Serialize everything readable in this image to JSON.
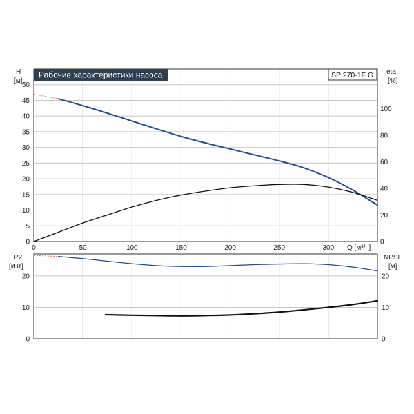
{
  "chart_data": {
    "type": "line",
    "title": "Рабочие характеристики насоса",
    "model": "SP 270-1F G",
    "x_axis": {
      "label": "Q [м³/ч]",
      "range": [
        0,
        350
      ],
      "ticks": [
        0,
        50,
        100,
        150,
        200,
        250,
        300
      ]
    },
    "grid": true,
    "top_panel": {
      "left_axis": {
        "label": "H",
        "unit": "[м]",
        "range": [
          0,
          55
        ],
        "ticks": [
          0,
          5,
          10,
          15,
          20,
          25,
          30,
          35,
          40,
          45,
          50
        ]
      },
      "right_axis": {
        "label": "eta",
        "unit": "[%]",
        "range": [
          0,
          130
        ],
        "ticks": [
          0,
          20,
          40,
          60,
          80,
          100
        ]
      },
      "series": [
        {
          "axis": "left",
          "color": "#1f4e8c",
          "extrapolated": {
            "x": [
              0,
              25
            ],
            "y": [
              47,
              45.5
            ]
          },
          "x": [
            25,
            50,
            75,
            100,
            125,
            150,
            175,
            200,
            225,
            250,
            275,
            300,
            325,
            350
          ],
          "y": [
            45.5,
            43.3,
            40.9,
            38.4,
            35.9,
            33.5,
            31.4,
            29.5,
            27.6,
            25.7,
            23.5,
            20.4,
            16.4,
            11.6
          ]
        },
        {
          "axis": "right",
          "color": "#111111",
          "x": [
            0,
            25,
            50,
            75,
            100,
            125,
            150,
            175,
            200,
            225,
            250,
            275,
            300,
            325,
            350
          ],
          "y": [
            0,
            7,
            14,
            20,
            26,
            31,
            35,
            38,
            40.5,
            42,
            43,
            43,
            41,
            37,
            31
          ]
        }
      ]
    },
    "bottom_panel": {
      "left_axis": {
        "label": "P2",
        "unit": "[кВт]",
        "range": [
          0,
          27
        ],
        "ticks": [
          0,
          10,
          20
        ]
      },
      "right_axis": {
        "label": "NPSH",
        "unit": "[м]",
        "range": [
          0,
          27
        ],
        "ticks": [
          0,
          10,
          20
        ]
      },
      "series": [
        {
          "axis": "left",
          "color": "#1f4e8c",
          "extrapolated": {
            "x": [
              0,
              25
            ],
            "y": [
              26.5,
              26.2
            ]
          },
          "x": [
            25,
            50,
            75,
            100,
            125,
            150,
            175,
            200,
            225,
            250,
            275,
            300,
            325,
            350
          ],
          "y": [
            26.2,
            25.5,
            24.7,
            23.9,
            23.3,
            23.0,
            23.0,
            23.3,
            23.6,
            23.8,
            23.9,
            23.6,
            22.8,
            21.6
          ]
        },
        {
          "axis": "right",
          "color": "#111111",
          "x": [
            73,
            100,
            125,
            150,
            175,
            200,
            225,
            250,
            275,
            300,
            325,
            350
          ],
          "y": [
            7.7,
            7.5,
            7.4,
            7.3,
            7.4,
            7.6,
            8.0,
            8.5,
            9.2,
            10.0,
            10.9,
            12.1
          ]
        }
      ]
    }
  }
}
